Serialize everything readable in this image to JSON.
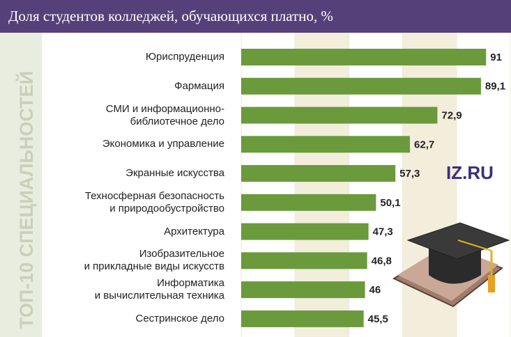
{
  "chart_data": {
    "type": "bar",
    "orientation": "horizontal",
    "title": "Доля студентов колледжей, обучающихся платно, %",
    "side_label": "ТОП-10 СПЕЦИАЛЬНОСТЕЙ",
    "logo": "IZ.RU",
    "categories": [
      "Юриспруденция",
      "Фармация",
      "СМИ и информационно-\nбиблиотечное дело",
      "Экономика и управление",
      "Экранные искусства",
      "Техносферная безопасность\nи природообустройство",
      "Архитектура",
      "Изобразительное\nи прикладные виды искусств",
      "Информатика\nи вычислительная техника",
      "Сестринское дело"
    ],
    "values": [
      91,
      89.1,
      72.9,
      62.7,
      57.3,
      50.1,
      47.3,
      46.8,
      46,
      45.5
    ],
    "value_labels": [
      "91",
      "89,1",
      "72,9",
      "62,7",
      "57,3",
      "50,1",
      "47,3",
      "46,8",
      "46",
      "45,5"
    ],
    "color": "#6a9a3c",
    "xlim": [
      0,
      100
    ],
    "xticks": [
      0,
      20,
      40,
      60,
      80,
      100
    ],
    "grid": true
  }
}
